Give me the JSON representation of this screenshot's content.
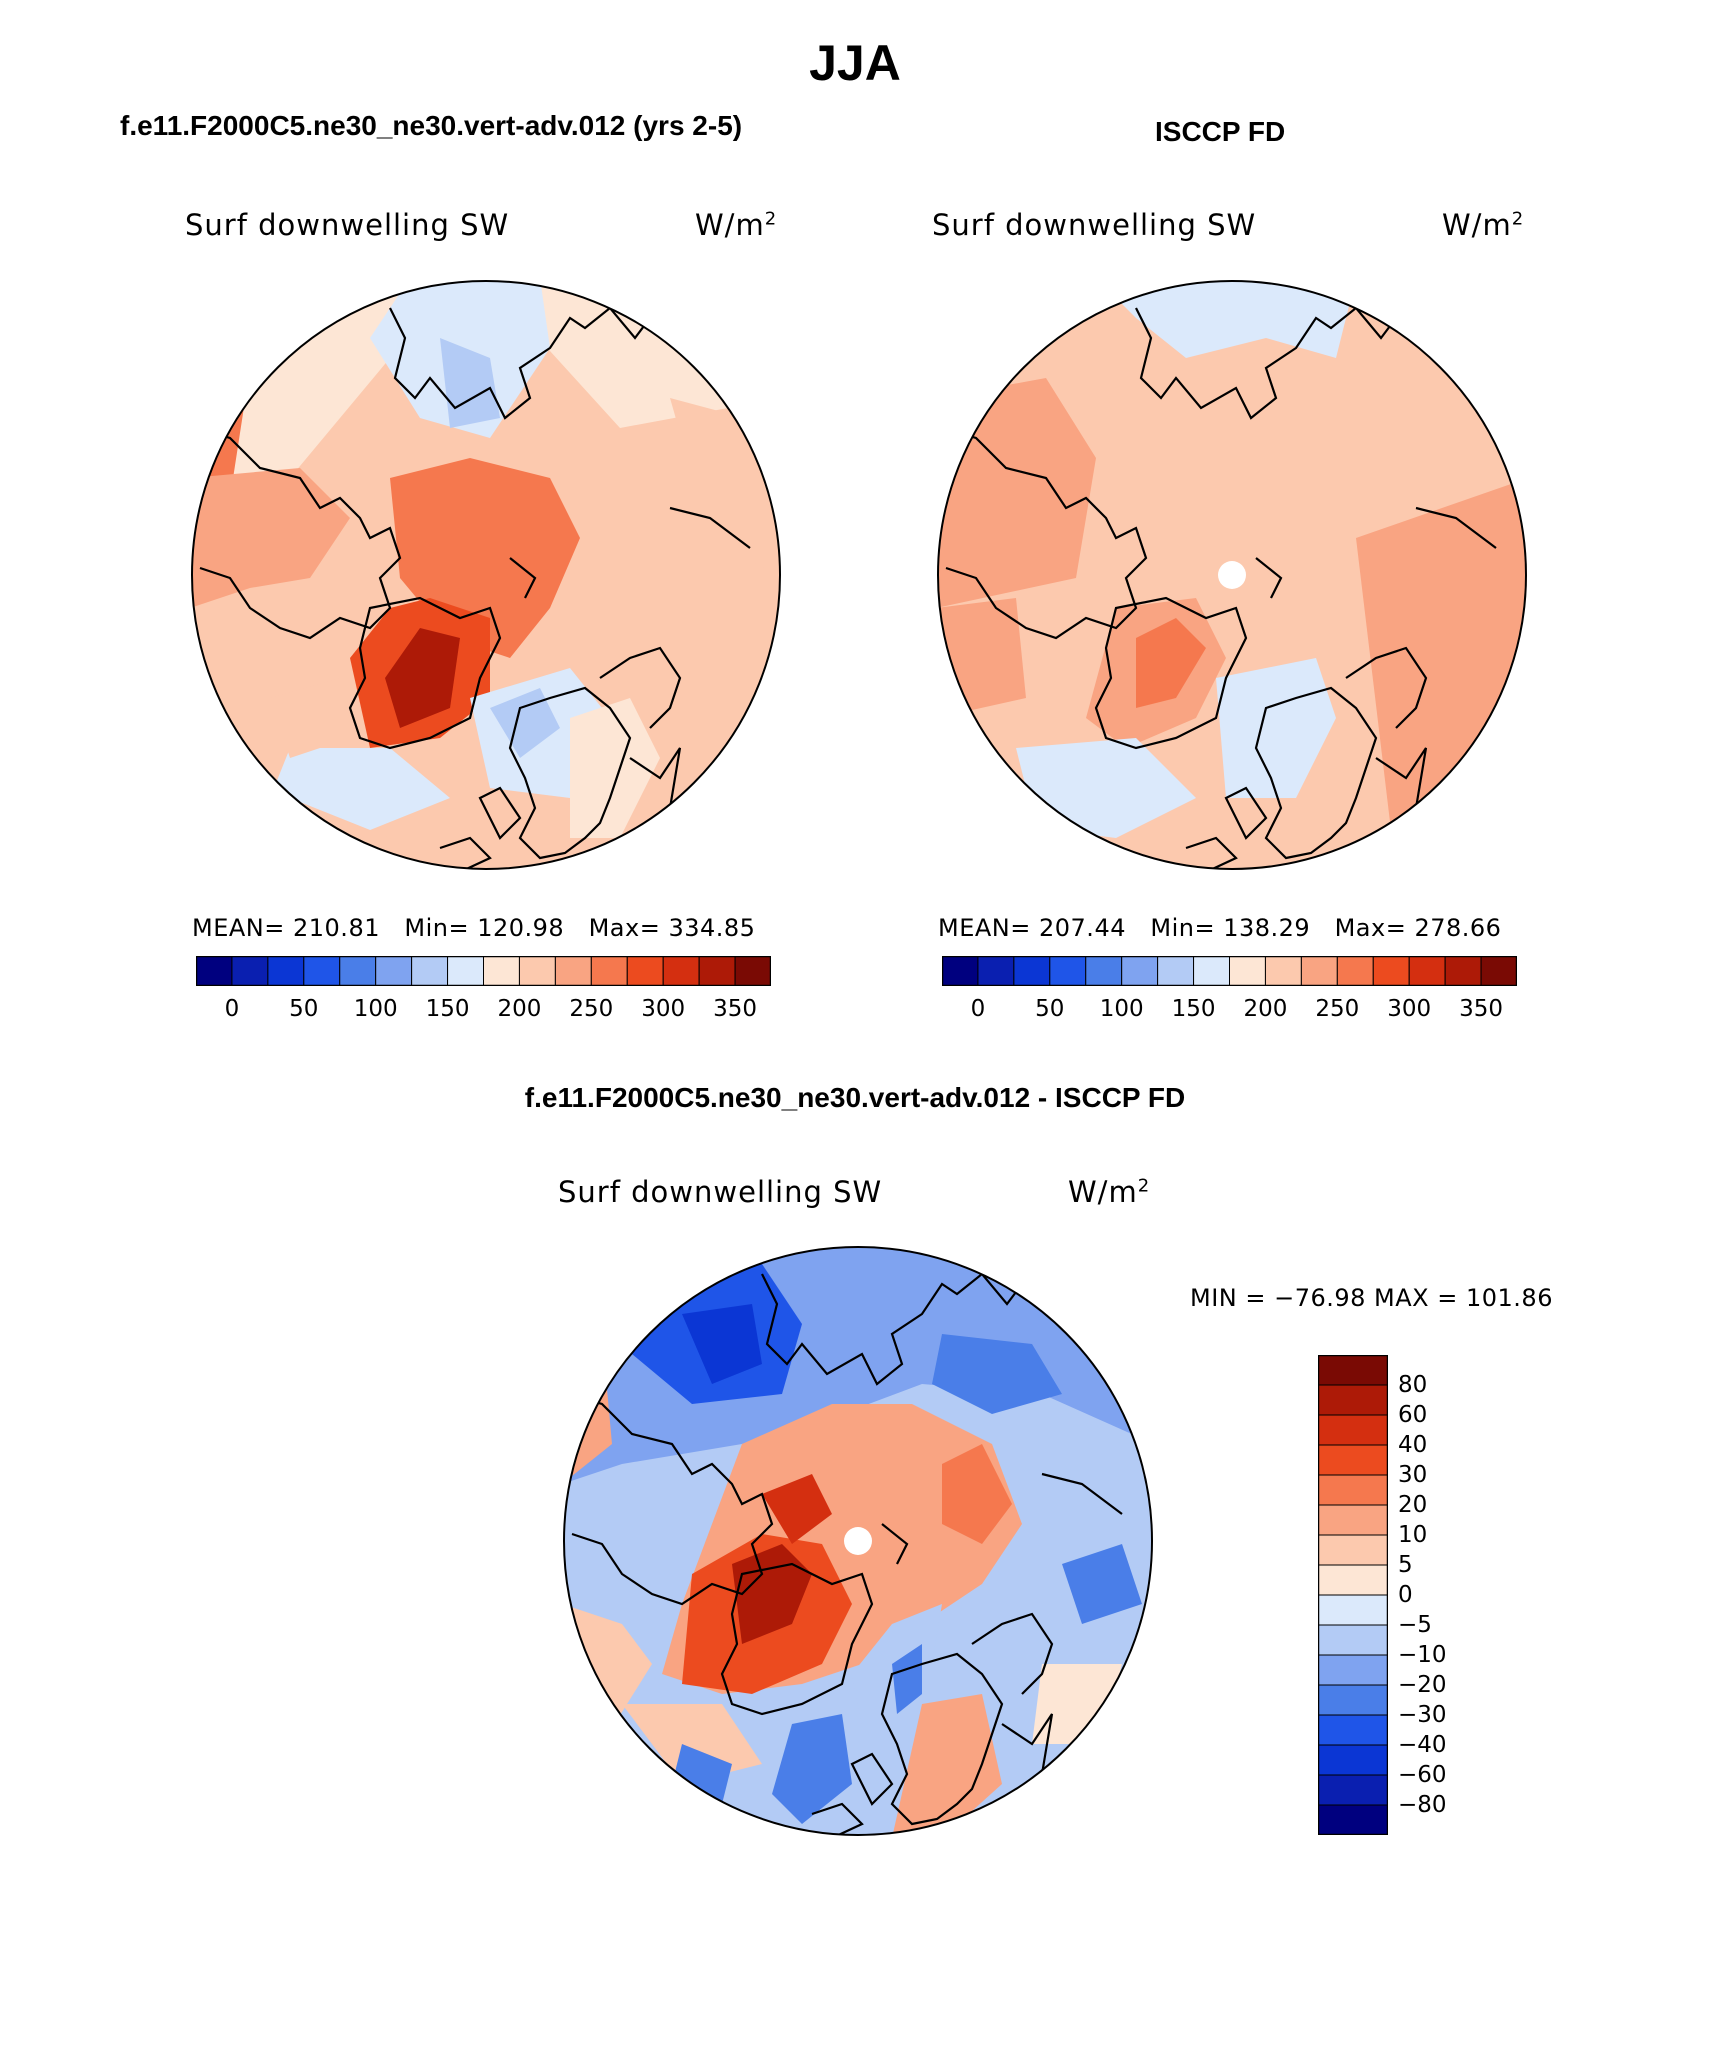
{
  "figure": {
    "title": "JJA",
    "model_name": "f.e11.F2000C5.ne30_ne30.vert-adv.012 (yrs 2-5)",
    "obs_name": "ISCCP FD",
    "diff_title": "f.e11.F2000C5.ne30_ne30.vert-adv.012 - ISCCP FD"
  },
  "panels": {
    "model": {
      "variable": "Surf downwelling SW",
      "units": "W/m",
      "units_exp": "2",
      "mean_label": "MEAN=",
      "mean": "210.81",
      "min_label": "Min=",
      "min": "120.98",
      "max_label": "Max=",
      "max": "334.85"
    },
    "obs": {
      "variable": "Surf downwelling SW",
      "units": "W/m",
      "units_exp": "2",
      "mean_label": "MEAN=",
      "mean": "207.44",
      "min_label": "Min=",
      "min": "138.29",
      "max_label": "Max=",
      "max": "278.66"
    },
    "diff": {
      "variable": "Surf downwelling SW",
      "units": "W/m",
      "units_exp": "2",
      "minmax": "MIN = −76.98 MAX = 101.86"
    }
  },
  "colorbars": {
    "main": {
      "colors": [
        "#00007f",
        "#0a1fb0",
        "#0b36d4",
        "#1f55e8",
        "#4a7ee8",
        "#7fa3f0",
        "#b3cbf5",
        "#dbe9fb",
        "#fde6d5",
        "#fcc9ae",
        "#f9a482",
        "#f5784e",
        "#ec4b1f",
        "#d42f10",
        "#ad1a07",
        "#7a0a04"
      ],
      "labels": [
        "0",
        "50",
        "100",
        "150",
        "200",
        "250",
        "300",
        "350"
      ]
    },
    "diff": {
      "colors_top_to_bottom": [
        "#7a0a04",
        "#ad1a07",
        "#d42f10",
        "#ec4b1f",
        "#f5784e",
        "#f9a482",
        "#fcc9ae",
        "#fde6d5",
        "#dbe9fb",
        "#b3cbf5",
        "#7fa3f0",
        "#4a7ee8",
        "#1f55e8",
        "#0b36d4",
        "#0a1fb0",
        "#00007f"
      ],
      "labels": [
        "80",
        "60",
        "40",
        "30",
        "20",
        "10",
        "5",
        "0",
        "−5",
        "−10",
        "−20",
        "−30",
        "−40",
        "−60",
        "−80"
      ]
    }
  }
}
